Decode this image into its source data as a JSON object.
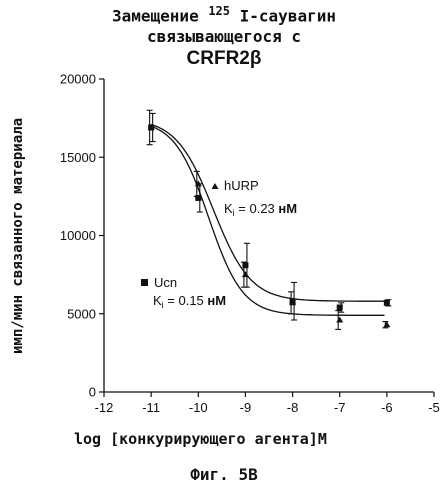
{
  "title": {
    "line1_prefix": "Замещение ",
    "line1_sup": "125",
    "line1_suffix": " I-саувагин",
    "line2": "связывающегося с",
    "line3": "CRFR2β"
  },
  "caption": "Фиг. 5B",
  "chart_data": {
    "type": "scatter",
    "title": "Замещение 125 I-саувагин связывающегося с CRFR2β",
    "xlabel": "log [конкурирующего агента]M",
    "ylabel": "имп/мин связанного материала",
    "xlim": [
      -12,
      -5
    ],
    "ylim": [
      0,
      20000
    ],
    "x_ticks": [
      -12,
      -11,
      -10,
      -9,
      -8,
      -7,
      -6,
      -5
    ],
    "x_tick_labels": [
      "-12",
      "-11",
      "-10",
      "-9",
      "-8",
      "-7",
      "-6",
      "-5"
    ],
    "y_ticks": [
      0,
      5000,
      10000,
      15000,
      20000
    ],
    "y_tick_labels": [
      "0",
      "5000",
      "10000",
      "15000",
      "20000"
    ],
    "series": [
      {
        "name": "hURP",
        "marker": "triangle",
        "x": [
          -11,
          -10,
          -9,
          -8,
          -7,
          -6
        ],
        "y": [
          16900,
          13300,
          7500,
          5700,
          4600,
          4300
        ],
        "err": [
          1100,
          800,
          800,
          700,
          600,
          200
        ],
        "fit": {
          "top": 17400,
          "bottom": 4900,
          "log_ic50": -9.78,
          "hill": 1.2
        },
        "annotation_ki": "K",
        "annotation_ki_sub": "i",
        "annotation_ki_value": " = 0.23 ",
        "annotation_ki_unit": "нМ"
      },
      {
        "name": "Ucn",
        "marker": "square",
        "x": [
          -11,
          -10,
          -9,
          -8,
          -7,
          -6
        ],
        "y": [
          16900,
          12400,
          8100,
          5800,
          5400,
          5700
        ],
        "err": [
          900,
          900,
          1400,
          1200,
          300,
          200
        ],
        "fit": {
          "top": 17500,
          "bottom": 5800,
          "log_ic50": -9.68,
          "hill": 1.1
        },
        "annotation_ki": "K",
        "annotation_ki_sub": "i",
        "annotation_ki_value": " = 0.15 ",
        "annotation_ki_unit": "нМ"
      }
    ]
  }
}
